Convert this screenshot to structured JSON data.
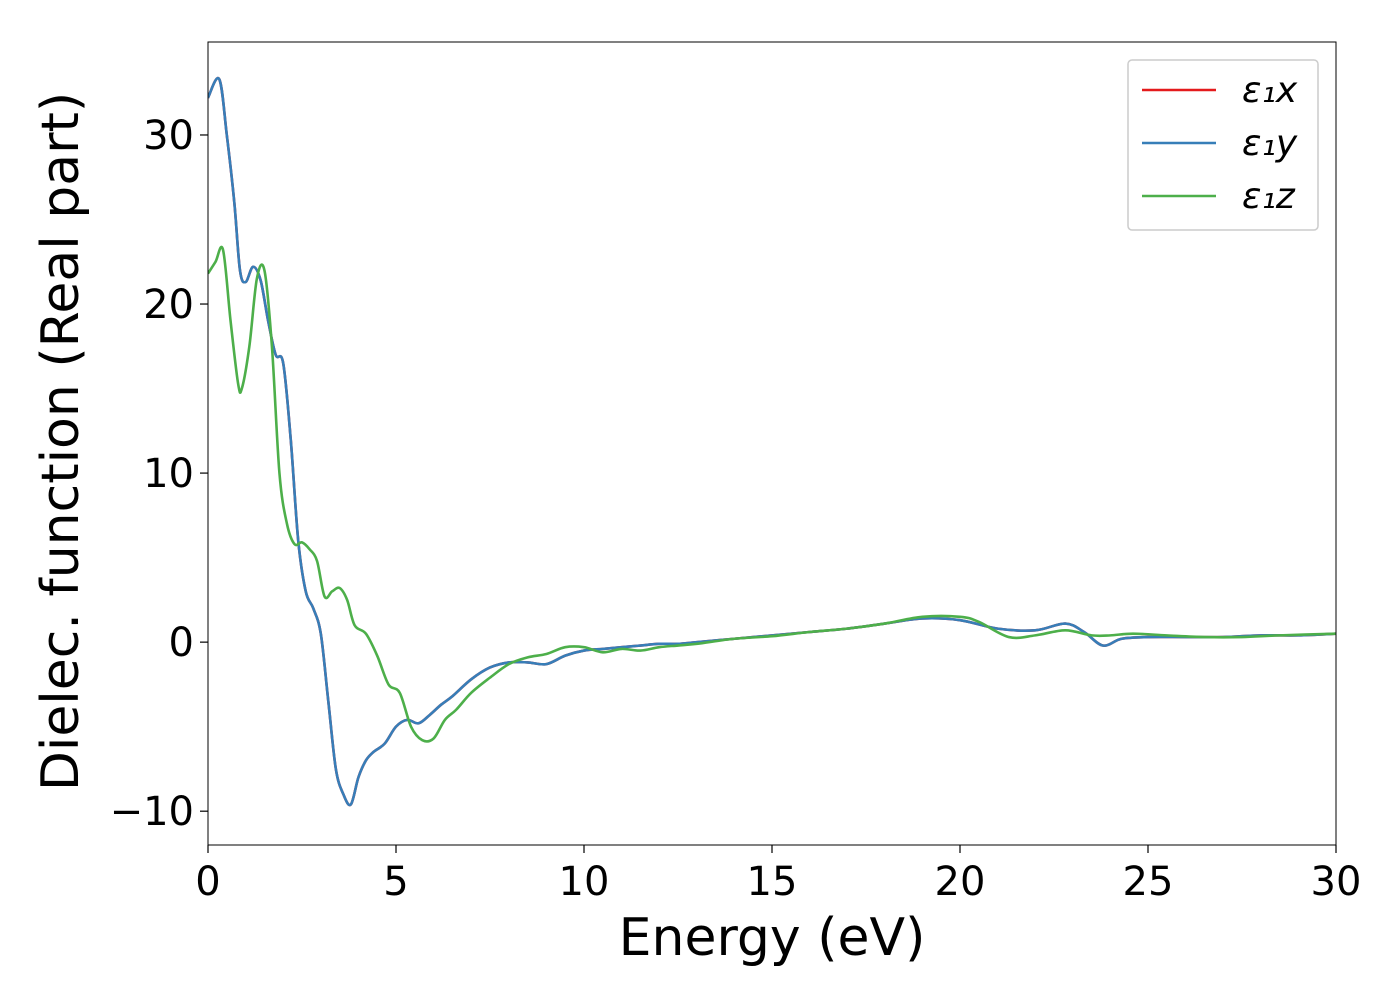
{
  "chart_data": {
    "type": "line",
    "xlabel": "Energy (eV)",
    "ylabel": "Dielec. function (Real part)",
    "xlim": [
      0,
      30
    ],
    "ylim": [
      -12,
      35.5
    ],
    "xticks": [
      0,
      5,
      10,
      15,
      20,
      25,
      30
    ],
    "yticks": [
      -10,
      0,
      10,
      20,
      30
    ],
    "xtick_labels": [
      "0",
      "5",
      "10",
      "15",
      "20",
      "25",
      "30"
    ],
    "ytick_labels": [
      "−10",
      "0",
      "10",
      "20",
      "30"
    ],
    "grid": false,
    "legend_position": "top-right",
    "colors": {
      "x": "#e41a1c",
      "y": "#377eb8",
      "z": "#4daf4a"
    },
    "series": [
      {
        "name": "ε₁x",
        "color": "#e41a1c",
        "x": [
          0,
          0.3,
          0.5,
          0.7,
          0.85,
          1.0,
          1.2,
          1.4,
          1.6,
          1.8,
          2.0,
          2.2,
          2.4,
          2.6,
          2.8,
          3.0,
          3.2,
          3.4,
          3.6,
          3.8,
          4.0,
          4.2,
          4.4,
          4.7,
          5.0,
          5.3,
          5.6,
          5.9,
          6.2,
          6.5,
          7.0,
          7.5,
          8.0,
          8.5,
          9.0,
          9.5,
          10.0,
          10.5,
          11.0,
          11.5,
          12.0,
          12.5,
          13.0,
          14.0,
          15.0,
          16.0,
          17.0,
          18.0,
          19.0,
          20.0,
          21.0,
          22.0,
          22.8,
          23.3,
          23.8,
          24.3,
          25.0,
          26.0,
          27.0,
          28.0,
          29.0,
          30.0
        ],
        "values": [
          32.2,
          33.3,
          30.0,
          26.0,
          22.0,
          21.3,
          22.2,
          21.4,
          19.0,
          17.0,
          16.5,
          12.0,
          6.0,
          3.0,
          2.0,
          0.5,
          -3.5,
          -7.5,
          -9.0,
          -9.6,
          -8.0,
          -7.0,
          -6.5,
          -6.0,
          -5.0,
          -4.6,
          -4.8,
          -4.3,
          -3.7,
          -3.2,
          -2.2,
          -1.5,
          -1.2,
          -1.2,
          -1.3,
          -0.8,
          -0.5,
          -0.4,
          -0.3,
          -0.2,
          -0.1,
          -0.1,
          0.0,
          0.2,
          0.4,
          0.6,
          0.8,
          1.1,
          1.4,
          1.3,
          0.8,
          0.7,
          1.1,
          0.6,
          -0.2,
          0.2,
          0.3,
          0.3,
          0.3,
          0.4,
          0.4,
          0.5
        ]
      },
      {
        "name": "ε₁y",
        "color": "#377eb8",
        "x": [
          0,
          0.3,
          0.5,
          0.7,
          0.85,
          1.0,
          1.2,
          1.4,
          1.6,
          1.8,
          2.0,
          2.2,
          2.4,
          2.6,
          2.8,
          3.0,
          3.2,
          3.4,
          3.6,
          3.8,
          4.0,
          4.2,
          4.4,
          4.7,
          5.0,
          5.3,
          5.6,
          5.9,
          6.2,
          6.5,
          7.0,
          7.5,
          8.0,
          8.5,
          9.0,
          9.5,
          10.0,
          10.5,
          11.0,
          11.5,
          12.0,
          12.5,
          13.0,
          14.0,
          15.0,
          16.0,
          17.0,
          18.0,
          19.0,
          20.0,
          21.0,
          22.0,
          22.8,
          23.3,
          23.8,
          24.3,
          25.0,
          26.0,
          27.0,
          28.0,
          29.0,
          30.0
        ],
        "values": [
          32.2,
          33.3,
          30.0,
          26.0,
          22.0,
          21.3,
          22.2,
          21.4,
          19.0,
          17.0,
          16.5,
          12.0,
          6.0,
          3.0,
          2.0,
          0.5,
          -3.5,
          -7.5,
          -9.0,
          -9.6,
          -8.0,
          -7.0,
          -6.5,
          -6.0,
          -5.0,
          -4.6,
          -4.8,
          -4.3,
          -3.7,
          -3.2,
          -2.2,
          -1.5,
          -1.2,
          -1.2,
          -1.3,
          -0.8,
          -0.5,
          -0.4,
          -0.3,
          -0.2,
          -0.1,
          -0.1,
          0.0,
          0.2,
          0.4,
          0.6,
          0.8,
          1.1,
          1.4,
          1.3,
          0.8,
          0.7,
          1.1,
          0.6,
          -0.2,
          0.2,
          0.3,
          0.3,
          0.3,
          0.4,
          0.4,
          0.5
        ]
      },
      {
        "name": "ε₁z",
        "color": "#4daf4a",
        "x": [
          0,
          0.2,
          0.4,
          0.6,
          0.8,
          0.9,
          1.1,
          1.3,
          1.5,
          1.7,
          1.9,
          2.1,
          2.3,
          2.5,
          2.7,
          2.9,
          3.1,
          3.3,
          3.5,
          3.7,
          3.9,
          4.2,
          4.5,
          4.8,
          5.1,
          5.4,
          5.7,
          6.0,
          6.3,
          6.6,
          7.0,
          7.5,
          8.0,
          8.5,
          9.0,
          9.5,
          10.0,
          10.5,
          11.0,
          11.5,
          12.0,
          12.5,
          13.0,
          14.0,
          15.0,
          16.0,
          17.0,
          18.0,
          19.0,
          20.0,
          20.5,
          21.3,
          22.0,
          22.8,
          23.5,
          24.0,
          24.6,
          25.5,
          26.5,
          27.5,
          28.5,
          30.0
        ],
        "values": [
          21.8,
          22.5,
          23.2,
          19.0,
          15.3,
          15.0,
          17.5,
          21.5,
          22.0,
          17.5,
          10.0,
          7.0,
          5.8,
          5.9,
          5.5,
          4.8,
          2.7,
          3.0,
          3.2,
          2.5,
          1.0,
          0.5,
          -0.8,
          -2.5,
          -3.0,
          -5.0,
          -5.8,
          -5.7,
          -4.6,
          -4.0,
          -3.0,
          -2.1,
          -1.3,
          -0.9,
          -0.7,
          -0.3,
          -0.3,
          -0.6,
          -0.4,
          -0.5,
          -0.3,
          -0.2,
          -0.1,
          0.2,
          0.35,
          0.6,
          0.8,
          1.1,
          1.5,
          1.5,
          1.2,
          0.3,
          0.4,
          0.7,
          0.4,
          0.4,
          0.5,
          0.4,
          0.3,
          0.3,
          0.4,
          0.5
        ]
      }
    ]
  }
}
